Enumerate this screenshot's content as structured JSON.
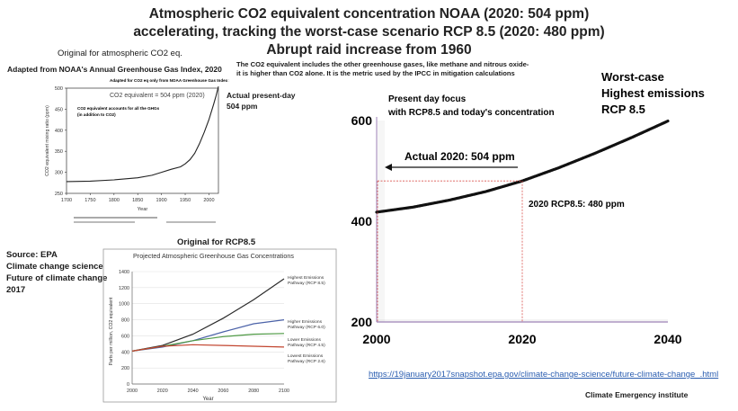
{
  "slide": {
    "title_lines": [
      "Atmospheric CO2 equivalent concentration NOAA (2020: 504 ppm)",
      "accelerating, tracking the worst-case scenario RCP 8.5  (2020: 480 ppm)",
      "Abrupt raid increase from 1960"
    ],
    "note_lines": [
      "The CO2 equivalent includes the other greenhouse gases, like methane and nitrous oxide-",
      "it is higher than CO2 alone.  It is the metric used by the IPCC in mitigation calculations"
    ],
    "noaa_caption": "Original for atmospheric CO2 eq.",
    "noaa_adapted": "Adapted from NOAA's Annual Greenhouse Gas Index, 2020",
    "actual_label": [
      "Actual present-day",
      "504 ppm"
    ],
    "source_lines": [
      "Source: EPA",
      "Climate change science",
      "Future of climate change",
      "2017"
    ],
    "rcp_caption": "Original for RCP8.5",
    "url": "https://19january2017snapshot.epa.gov/climate-change-science/future-climate-change_.html",
    "credit": "Climate Emergency institute",
    "colors": {
      "black": "#111111",
      "red_guides": "#d9534f",
      "purple_axis": "#9b7fb5",
      "gray_box": "#9a9a9a"
    }
  },
  "chart_data": [
    {
      "id": "main",
      "type": "scatter",
      "title": "",
      "xlabel": "",
      "ylabel": "",
      "xlim": [
        2000,
        2040
      ],
      "ylim": [
        200,
        600
      ],
      "x_ticks": [
        "2000",
        "2020",
        "2040"
      ],
      "y_ticks": [
        "200",
        "400",
        "600"
      ],
      "series": [
        {
          "values_x": [
            2000,
            2005,
            2010,
            2015,
            2020,
            2025,
            2030,
            2035,
            2040
          ],
          "values_y": [
            418,
            428,
            442,
            459,
            480,
            506,
            535,
            566,
            599
          ]
        }
      ],
      "annotations": {
        "worst_case": [
          "Worst-case",
          "Highest emissions",
          "RCP 8.5"
        ],
        "present_focus": [
          "Present day focus",
          "with RCP8.5 and today's concentration"
        ],
        "actual_2020": "Actual 2020: 504 ppm",
        "rcp_2020": "2020 RCP8.5: 480 ppm",
        "guide_y": 480,
        "guide_x": 2020
      }
    },
    {
      "id": "noaa",
      "type": "line",
      "header": "Adapted for CO2 eq only from NOAA Greenhouse Gas Index Spring 2021",
      "legend_box": "CO2 equivalent = 504 ppm (2020)",
      "inner_note": [
        "CO2 equivalent accounts for all the GHGs",
        "(in addition to CO2)"
      ],
      "xlabel": "Year",
      "ylabel": "CO2 equivalent mixing ratio (ppm)",
      "xlim": [
        1700,
        2020
      ],
      "ylim": [
        250,
        500
      ],
      "x_ticks": [
        "1700",
        "1750",
        "1800",
        "1850",
        "1900",
        "1950",
        "2000"
      ],
      "y_ticks": [
        "250",
        "300",
        "350",
        "400",
        "450",
        "500"
      ],
      "series": [
        {
          "x": [
            1700,
            1750,
            1800,
            1850,
            1880,
            1900,
            1920,
            1940,
            1950,
            1960,
            1970,
            1980,
            1990,
            2000,
            2010,
            2015,
            2020
          ],
          "y": [
            278,
            279,
            282,
            287,
            293,
            300,
            307,
            313,
            320,
            330,
            345,
            368,
            395,
            425,
            462,
            482,
            504
          ]
        }
      ]
    },
    {
      "id": "rcp",
      "type": "line",
      "title": "Projected Atmospheric Greenhouse Gas Concentrations",
      "xlabel": "Year",
      "ylabel": "Parts per million, CO2 equivalent",
      "xlim": [
        2000,
        2100
      ],
      "ylim": [
        0,
        1400
      ],
      "x_ticks": [
        "2000",
        "2020",
        "2040",
        "2060",
        "2080",
        "2100"
      ],
      "y_ticks": [
        "0",
        "200",
        "400",
        "600",
        "800",
        "1000",
        "1200",
        "1400"
      ],
      "x": [
        2000,
        2020,
        2040,
        2060,
        2080,
        2100
      ],
      "series": [
        {
          "name": "Highest Emissions Pathway (RCP 8.5)",
          "color": "#2b2b2b",
          "values": [
            410,
            480,
            620,
            820,
            1050,
            1310
          ]
        },
        {
          "name": "Higher Emissions Pathway (RCP 6.0)",
          "color": "#4b62a8",
          "values": [
            410,
            460,
            540,
            650,
            750,
            800
          ]
        },
        {
          "name": "Lower Emissions Pathway (RCP 4.5)",
          "color": "#4f9a45",
          "values": [
            410,
            470,
            540,
            590,
            620,
            630
          ]
        },
        {
          "name": "Lowest Emissions Pathway (RCP 2.6)",
          "color": "#c2452f",
          "values": [
            410,
            470,
            490,
            480,
            470,
            460
          ]
        }
      ]
    }
  ]
}
